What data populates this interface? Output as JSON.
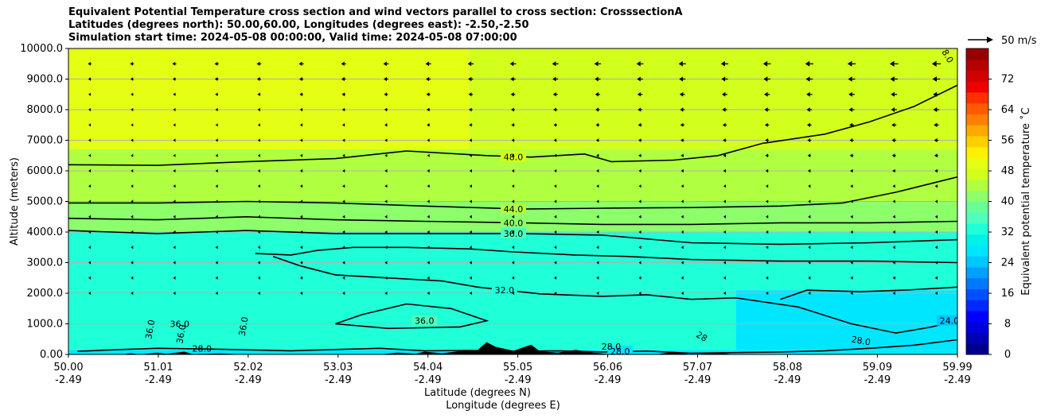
{
  "chart_data": {
    "type": "contourf",
    "title_lines": [
      "Equivalent Potential Temperature cross section and wind vectors parallel to cross section: CrosssectionA",
      "Latitudes (degrees north): 50.00,60.00, Longitudes (degrees east): -2.50,-2.50",
      "Simulation start time: 2024-05-08 00:00:00, Valid time: 2024-05-08 07:00:00"
    ],
    "ylabel": "Altitude (meters)",
    "xlabel_lat": "Latitude (degrees N)",
    "xlabel_lon": "Longitude (degrees E)",
    "xlim": [
      50.0,
      59.99
    ],
    "ylim": [
      0,
      10000
    ],
    "y_ticks": [
      "0.00",
      "1000.0",
      "2000.0",
      "3000.0",
      "4000.0",
      "5000.0",
      "6000.0",
      "7000.0",
      "8000.0",
      "9000.0",
      "10000.0"
    ],
    "x_ticks": [
      {
        "lat": "50.00",
        "lon": "-2.49"
      },
      {
        "lat": "51.01",
        "lon": "-2.49"
      },
      {
        "lat": "52.02",
        "lon": "-2.49"
      },
      {
        "lat": "53.03",
        "lon": "-2.49"
      },
      {
        "lat": "54.04",
        "lon": "-2.49"
      },
      {
        "lat": "55.05",
        "lon": "-2.49"
      },
      {
        "lat": "56.06",
        "lon": "-2.49"
      },
      {
        "lat": "57.07",
        "lon": "-2.49"
      },
      {
        "lat": "58.08",
        "lon": "-2.49"
      },
      {
        "lat": "59.09",
        "lon": "-2.49"
      },
      {
        "lat": "59.99",
        "lon": "-2.49"
      }
    ],
    "grid": "horizontal",
    "colorbar": {
      "label": "Equivalent potential temperature ˚C",
      "min": 0,
      "max": 80,
      "tick_values": [
        0,
        8,
        16,
        24,
        32,
        40,
        48,
        56,
        64,
        72
      ],
      "tick_labels": [
        "0",
        "8",
        "16",
        "24",
        "32",
        "40",
        "48",
        "56",
        "64",
        "72"
      ],
      "colors": [
        "#00008b",
        "#0000b4",
        "#0000dc",
        "#0000ff",
        "#0028ff",
        "#0050ff",
        "#0078ff",
        "#00a0ff",
        "#00c8ff",
        "#00e6ff",
        "#00f0ea",
        "#1fffd8",
        "#4dffbb",
        "#66ff99",
        "#8cff6b",
        "#b0ff40",
        "#d2ff1c",
        "#e4ff14",
        "#fff000",
        "#ffd000",
        "#ffa800",
        "#ff8000",
        "#ff5a00",
        "#ff3000",
        "#f00000",
        "#d20000",
        "#b40000",
        "#960000"
      ]
    },
    "field_bands": [
      {
        "z0": 0,
        "z1": 150,
        "lat_range": [
          50.0,
          59.99
        ],
        "theta": 28
      },
      {
        "z0": 150,
        "z1": 2100,
        "lat_range": [
          50.0,
          57.5
        ],
        "theta": 33
      },
      {
        "z0": 150,
        "z1": 2100,
        "lat_range": [
          57.5,
          59.99
        ],
        "theta": 27
      },
      {
        "z0": 2100,
        "z1": 4000,
        "lat_range": [
          50.0,
          59.99
        ],
        "theta": 34
      },
      {
        "z0": 4000,
        "z1": 5000,
        "lat_range": [
          50.0,
          59.99
        ],
        "theta": 42
      },
      {
        "z0": 5000,
        "z1": 6700,
        "lat_range": [
          50.0,
          59.99
        ],
        "theta": 45
      },
      {
        "z0": 6700,
        "z1": 10000,
        "lat_range": [
          54.5,
          59.99
        ],
        "theta": 48
      },
      {
        "z0": 6700,
        "z1": 10000,
        "lat_range": [
          50.0,
          54.5
        ],
        "theta": 50
      }
    ],
    "contours": [
      {
        "level": 48.0,
        "label": "48.0",
        "label_lat": 55.0,
        "label_z": 6450,
        "points": [
          [
            50.0,
            6200
          ],
          [
            51.0,
            6180
          ],
          [
            52.0,
            6300
          ],
          [
            53.0,
            6400
          ],
          [
            53.8,
            6650
          ],
          [
            54.7,
            6500
          ],
          [
            55.2,
            6450
          ],
          [
            55.8,
            6550
          ],
          [
            56.1,
            6300
          ],
          [
            56.8,
            6350
          ],
          [
            57.3,
            6500
          ],
          [
            57.8,
            6900
          ],
          [
            58.5,
            7200
          ],
          [
            59.0,
            7600
          ],
          [
            59.5,
            8100
          ],
          [
            59.99,
            8800
          ]
        ]
      },
      {
        "level": 44.0,
        "label": "44.0",
        "label_lat": 55.0,
        "label_z": 4750,
        "points": [
          [
            50.0,
            4950
          ],
          [
            51.0,
            4950
          ],
          [
            52.0,
            5000
          ],
          [
            53.0,
            4950
          ],
          [
            54.0,
            4850
          ],
          [
            55.1,
            4750
          ],
          [
            56.0,
            4780
          ],
          [
            57.0,
            4800
          ],
          [
            58.0,
            4850
          ],
          [
            58.7,
            4950
          ],
          [
            59.3,
            5300
          ],
          [
            59.99,
            5800
          ]
        ]
      },
      {
        "level": 40.0,
        "label": "40.0",
        "label_lat": 55.0,
        "label_z": 4300,
        "points": [
          [
            50.0,
            4450
          ],
          [
            51.0,
            4400
          ],
          [
            52.0,
            4500
          ],
          [
            53.0,
            4400
          ],
          [
            54.0,
            4350
          ],
          [
            55.1,
            4300
          ],
          [
            56.0,
            4250
          ],
          [
            57.0,
            4250
          ],
          [
            58.0,
            4300
          ],
          [
            59.0,
            4300
          ],
          [
            59.99,
            4350
          ]
        ]
      },
      {
        "level": 36.0,
        "label": "36.0",
        "label_lat": 55.0,
        "label_z": 3950,
        "points": [
          [
            50.0,
            4050
          ],
          [
            51.0,
            3950
          ],
          [
            52.0,
            4050
          ],
          [
            53.0,
            3950
          ],
          [
            54.0,
            3950
          ],
          [
            55.1,
            3950
          ],
          [
            56.0,
            3900
          ],
          [
            57.0,
            3650
          ],
          [
            58.0,
            3600
          ],
          [
            59.0,
            3650
          ],
          [
            59.99,
            3750
          ]
        ]
      },
      {
        "level": 36.0,
        "label": "",
        "label_lat": 0,
        "label_z": 0,
        "points": [
          [
            52.1,
            3300
          ],
          [
            52.5,
            3250
          ],
          [
            52.8,
            3400
          ],
          [
            53.2,
            3500
          ],
          [
            53.8,
            3500
          ],
          [
            54.5,
            3450
          ],
          [
            55.0,
            3350
          ],
          [
            55.7,
            3250
          ],
          [
            56.3,
            3200
          ],
          [
            57.0,
            3100
          ],
          [
            58.0,
            3050
          ],
          [
            59.0,
            3050
          ],
          [
            59.99,
            3000
          ]
        ]
      },
      {
        "level": 32.0,
        "label": "32.0",
        "label_lat": 54.9,
        "label_z": 2100,
        "points": [
          [
            52.3,
            3200
          ],
          [
            52.6,
            2900
          ],
          [
            53.0,
            2600
          ],
          [
            53.6,
            2500
          ],
          [
            54.2,
            2400
          ],
          [
            54.6,
            2200
          ],
          [
            55.3,
            1980
          ],
          [
            56.0,
            1900
          ],
          [
            56.5,
            1950
          ],
          [
            57.0,
            1800
          ],
          [
            57.5,
            1850
          ],
          [
            58.2,
            1550
          ],
          [
            58.8,
            1000
          ],
          [
            59.3,
            700
          ],
          [
            59.7,
            900
          ],
          [
            59.99,
            1100
          ]
        ]
      },
      {
        "level": 24.0,
        "label": "24.0",
        "label_lat": 59.9,
        "label_z": 1100,
        "points": [
          [
            58.0,
            1800
          ],
          [
            58.3,
            2100
          ],
          [
            58.9,
            2050
          ],
          [
            59.4,
            2100
          ],
          [
            59.99,
            2200
          ]
        ]
      },
      {
        "level": 36.0,
        "label": "36.0",
        "label_lat": 54.0,
        "label_z": 1100,
        "points": [
          [
            53.0,
            1000
          ],
          [
            53.3,
            1300
          ],
          [
            53.8,
            1650
          ],
          [
            54.3,
            1500
          ],
          [
            54.7,
            1100
          ],
          [
            54.4,
            900
          ],
          [
            53.6,
            850
          ],
          [
            53.0,
            1000
          ]
        ]
      },
      {
        "level": 28.0,
        "label": "28.0",
        "label_lat": 56.2,
        "label_z": 100,
        "points": [
          [
            50.1,
            100
          ],
          [
            50.5,
            150
          ],
          [
            51.0,
            200
          ],
          [
            51.5,
            180
          ],
          [
            52.0,
            150
          ],
          [
            52.5,
            120
          ],
          [
            53.0,
            160
          ],
          [
            53.5,
            200
          ],
          [
            54.0,
            120
          ],
          [
            54.5,
            130
          ],
          [
            55.0,
            100
          ],
          [
            55.5,
            120
          ],
          [
            56.0,
            80
          ],
          [
            56.5,
            110
          ],
          [
            57.0,
            40
          ],
          [
            57.5,
            60
          ],
          [
            58.0,
            80
          ],
          [
            58.5,
            120
          ],
          [
            59.0,
            200
          ],
          [
            59.5,
            300
          ],
          [
            59.99,
            480
          ]
        ]
      }
    ],
    "extra_labels": [
      {
        "text": "36.0",
        "lat": 50.95,
        "z": 800,
        "rotate": -80
      },
      {
        "text": "36.0",
        "lat": 51.25,
        "z": 900,
        "rotate": 0
      },
      {
        "text": "36.0",
        "lat": 51.3,
        "z": 650,
        "rotate": -80
      },
      {
        "text": "36.0",
        "lat": 52.0,
        "z": 900,
        "rotate": -80
      },
      {
        "text": "28.0",
        "lat": 51.5,
        "z": 90,
        "rotate": 0
      },
      {
        "text": "28.0",
        "lat": 56.1,
        "z": 150,
        "rotate": 0
      },
      {
        "text": "28",
        "lat": 57.1,
        "z": 500,
        "rotate": 30
      },
      {
        "text": "28.0",
        "lat": 58.9,
        "z": 350,
        "rotate": 10
      },
      {
        "text": "8.0",
        "lat": 59.85,
        "z": 9700,
        "rotate": 60
      }
    ],
    "wind_vectors": {
      "reference_label": "50 m/s",
      "reference_speed": 50,
      "levels_m": [
        9500,
        9000,
        8500,
        8000,
        7500,
        7000,
        6500,
        6000,
        5500,
        5000,
        4500,
        4000,
        3500,
        3000,
        2500,
        2000
      ],
      "speed_at_level_north": [
        16,
        14,
        12,
        11,
        9,
        8,
        7,
        6,
        5,
        4,
        3,
        3,
        2,
        2,
        2,
        1
      ],
      "speed_at_level_south": [
        6,
        5,
        4,
        3,
        3,
        2,
        2,
        2,
        2,
        1,
        1,
        1,
        1,
        1,
        1,
        1
      ],
      "direction": "southward"
    },
    "terrain_m": [
      [
        50.0,
        0
      ],
      [
        50.6,
        0
      ],
      [
        50.7,
        40
      ],
      [
        50.8,
        0
      ],
      [
        51.0,
        60
      ],
      [
        51.1,
        20
      ],
      [
        51.3,
        90
      ],
      [
        51.4,
        10
      ],
      [
        51.7,
        30
      ],
      [
        52.0,
        0
      ],
      [
        53.5,
        0
      ],
      [
        53.7,
        60
      ],
      [
        53.9,
        20
      ],
      [
        54.0,
        90
      ],
      [
        54.2,
        40
      ],
      [
        54.4,
        110
      ],
      [
        54.6,
        150
      ],
      [
        54.7,
        400
      ],
      [
        54.8,
        250
      ],
      [
        55.0,
        120
      ],
      [
        55.2,
        320
      ],
      [
        55.3,
        100
      ],
      [
        55.5,
        60
      ],
      [
        55.7,
        150
      ],
      [
        55.9,
        60
      ],
      [
        56.1,
        0
      ],
      [
        56.6,
        0
      ],
      [
        56.8,
        80
      ],
      [
        57.0,
        0
      ],
      [
        57.3,
        50
      ],
      [
        57.5,
        0
      ],
      [
        58.0,
        0
      ],
      [
        59.99,
        0
      ]
    ]
  }
}
